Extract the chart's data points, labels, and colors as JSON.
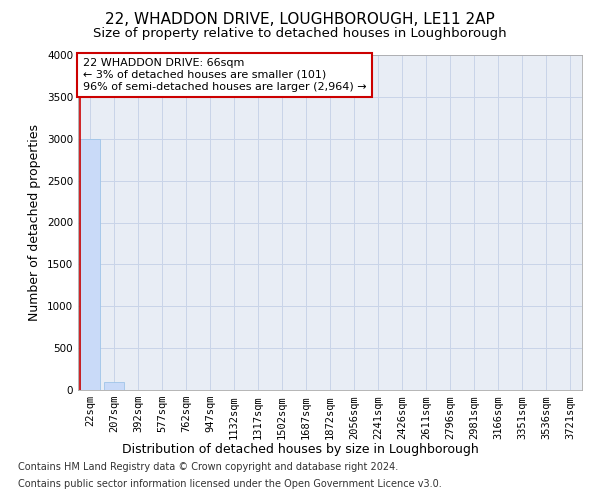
{
  "title": "22, WHADDON DRIVE, LOUGHBOROUGH, LE11 2AP",
  "subtitle": "Size of property relative to detached houses in Loughborough",
  "xlabel": "Distribution of detached houses by size in Loughborough",
  "ylabel": "Number of detached properties",
  "footnote1": "Contains HM Land Registry data © Crown copyright and database right 2024.",
  "footnote2": "Contains public sector information licensed under the Open Government Licence v3.0.",
  "categories": [
    "22sqm",
    "207sqm",
    "392sqm",
    "577sqm",
    "762sqm",
    "947sqm",
    "1132sqm",
    "1317sqm",
    "1502sqm",
    "1687sqm",
    "1872sqm",
    "2056sqm",
    "2241sqm",
    "2426sqm",
    "2611sqm",
    "2796sqm",
    "2981sqm",
    "3166sqm",
    "3351sqm",
    "3536sqm",
    "3721sqm"
  ],
  "values": [
    3000,
    101,
    0,
    0,
    0,
    0,
    0,
    0,
    0,
    0,
    0,
    0,
    0,
    0,
    0,
    0,
    0,
    0,
    0,
    0,
    0
  ],
  "bar_color": "#c9daf8",
  "bar_edge_color": "#9fc5e8",
  "ylim": [
    0,
    4000
  ],
  "yticks": [
    0,
    500,
    1000,
    1500,
    2000,
    2500,
    3000,
    3500,
    4000
  ],
  "annotation_text": "22 WHADDON DRIVE: 66sqm\n← 3% of detached houses are smaller (101)\n96% of semi-detached houses are larger (2,964) →",
  "annotation_box_color": "#ffffff",
  "annotation_box_edge_color": "#cc0000",
  "red_line_x": 0,
  "background_color": "#ffffff",
  "grid_color": "#c9d4e8",
  "title_fontsize": 11,
  "subtitle_fontsize": 9.5,
  "axis_label_fontsize": 9,
  "tick_fontsize": 7.5,
  "footnote_fontsize": 7
}
